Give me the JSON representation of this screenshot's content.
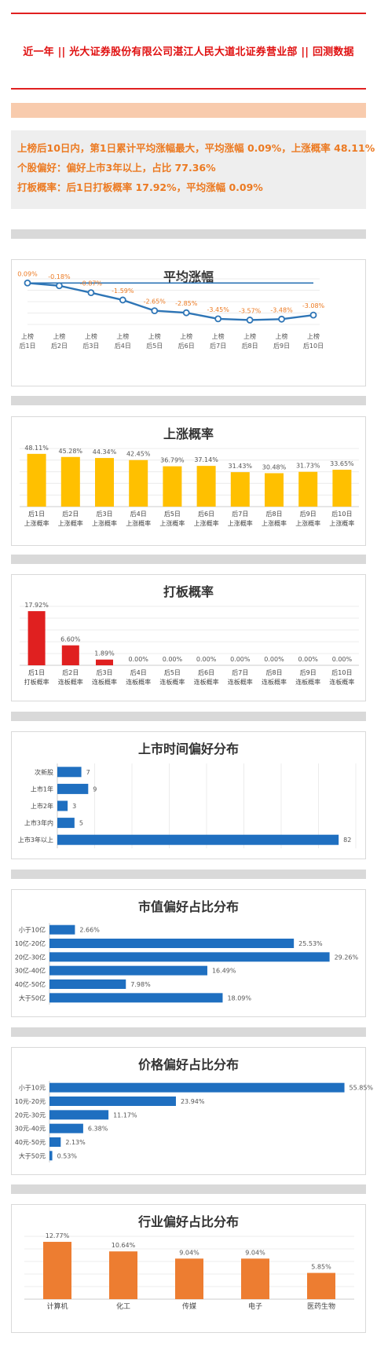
{
  "header": {
    "title": "近一年 || 光大证券股份有限公司湛江人民大道北证券营业部 || 回测数据"
  },
  "summary": {
    "line1": "上榜后10日内，第1日累计平均涨幅最大，平均涨幅 0.09%，上涨概率 48.11%",
    "line2": "个股偏好：偏好上市3年以上，占比 77.36%",
    "line3": "打板概率：后1日打板概率 17.92%，平均涨幅 0.09%"
  },
  "colors": {
    "accent_red": "#e01010",
    "summary_orange": "#ec7a22",
    "line_blue": "#2e75b6",
    "bar_yellow": "#ffc000",
    "bar_red": "#e02020",
    "bar_blue": "#1f6fc0",
    "bar_orange": "#ed7d31"
  },
  "chart_data": [
    {
      "id": "avg-rise",
      "type": "line",
      "title": "平均涨幅",
      "categories": [
        "上榜\n后1日",
        "上榜\n后2日",
        "上榜\n后3日",
        "上榜\n后4日",
        "上榜\n后5日",
        "上榜\n后6日",
        "上榜\n后7日",
        "上榜\n后8日",
        "上榜\n后9日",
        "上榜\n后10日"
      ],
      "values": [
        0.09,
        -0.18,
        -0.87,
        -1.59,
        -2.65,
        -2.85,
        -3.45,
        -3.57,
        -3.48,
        -3.08
      ],
      "labels": [
        "0.09%",
        "-0.18%",
        "-0.87%",
        "-1.59%",
        "-2.65%",
        "-2.85%",
        "-3.45%",
        "-3.57%",
        "-3.48%",
        "-3.08%"
      ],
      "reference_value": 0.09,
      "grid": true
    },
    {
      "id": "rise-prob",
      "type": "bar",
      "title": "上涨概率",
      "categories": [
        "后1日\n上涨概率",
        "后2日\n上涨概率",
        "后3日\n上涨概率",
        "后4日\n上涨概率",
        "后5日\n上涨概率",
        "后6日\n上涨概率",
        "后7日\n上涨概率",
        "后8日\n上涨概率",
        "后9日\n上涨概率",
        "后10日\n上涨概率"
      ],
      "values": [
        48.11,
        45.28,
        44.34,
        42.45,
        36.79,
        37.14,
        31.43,
        30.48,
        31.73,
        33.65
      ],
      "labels": [
        "48.11%",
        "45.28%",
        "44.34%",
        "42.45%",
        "36.79%",
        "37.14%",
        "31.43%",
        "30.48%",
        "31.73%",
        "33.65%"
      ],
      "grid": true
    },
    {
      "id": "limit-prob",
      "type": "bar",
      "title": "打板概率",
      "categories": [
        "后1日\n打板概率",
        "后2日\n连板概率",
        "后3日\n连板概率",
        "后4日\n连板概率",
        "后5日\n连板概率",
        "后6日\n连板概率",
        "后7日\n连板概率",
        "后8日\n连板概率",
        "后9日\n连板概率",
        "后10日\n连板概率"
      ],
      "values": [
        17.92,
        6.6,
        1.89,
        0,
        0,
        0,
        0,
        0,
        0,
        0
      ],
      "labels": [
        "17.92%",
        "6.60%",
        "1.89%",
        "0.00%",
        "0.00%",
        "0.00%",
        "0.00%",
        "0.00%",
        "0.00%",
        "0.00%"
      ],
      "grid": true
    },
    {
      "id": "listing-time",
      "type": "bar",
      "orientation": "horizontal",
      "title": "上市时间偏好分布",
      "categories": [
        "次新股",
        "上市1年",
        "上市2年",
        "上市3年内",
        "上市3年以上"
      ],
      "values": [
        7,
        9,
        3,
        5,
        82
      ],
      "labels": [
        "7",
        "9",
        "3",
        "5",
        "82"
      ],
      "grid": true
    },
    {
      "id": "market-cap",
      "type": "bar",
      "orientation": "horizontal",
      "title": "市值偏好占比分布",
      "categories": [
        "小于10亿",
        "10亿-20亿",
        "20亿-30亿",
        "30亿-40亿",
        "40亿-50亿",
        "大于50亿"
      ],
      "values": [
        2.66,
        25.53,
        29.26,
        16.49,
        7.98,
        18.09
      ],
      "labels": [
        "2.66%",
        "25.53%",
        "29.26%",
        "16.49%",
        "7.98%",
        "18.09%"
      ],
      "grid": false
    },
    {
      "id": "price",
      "type": "bar",
      "orientation": "horizontal",
      "title": "价格偏好占比分布",
      "categories": [
        "小于10元",
        "10元-20元",
        "20元-30元",
        "30元-40元",
        "40元-50元",
        "大于50元"
      ],
      "values": [
        55.85,
        23.94,
        11.17,
        6.38,
        2.13,
        0.53
      ],
      "labels": [
        "55.85%",
        "23.94%",
        "11.17%",
        "6.38%",
        "2.13%",
        "0.53%"
      ],
      "grid": false
    },
    {
      "id": "industry",
      "type": "bar",
      "title": "行业偏好占比分布",
      "categories": [
        "计算机",
        "化工",
        "传媒",
        "电子",
        "医药生物"
      ],
      "values": [
        12.77,
        10.64,
        9.04,
        9.04,
        5.85
      ],
      "labels": [
        "12.77%",
        "10.64%",
        "9.04%",
        "9.04%",
        "5.85%"
      ],
      "grid": true
    }
  ]
}
